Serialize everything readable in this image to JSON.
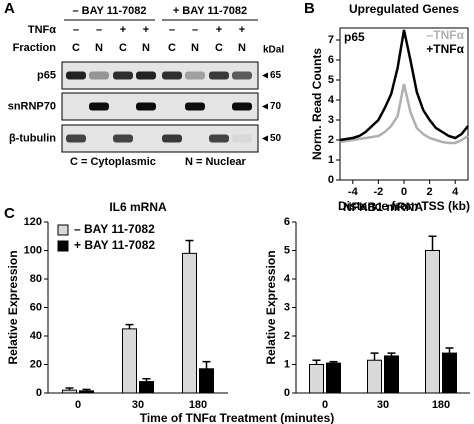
{
  "panel_labels": [
    "A",
    "B",
    "C"
  ],
  "blot": {
    "groups": [
      "– BAY 11-7082",
      "+ BAY 11-7082"
    ],
    "treatment_label": "TNFα",
    "treatment": [
      "–",
      "–",
      "+",
      "+",
      "–",
      "–",
      "+",
      "+"
    ],
    "fraction_label": "Fraction",
    "fractions": [
      "C",
      "N",
      "C",
      "N",
      "C",
      "N",
      "C",
      "N"
    ],
    "unit": "kDal",
    "rows": [
      {
        "name": "p65",
        "marker": "65"
      },
      {
        "name": "snRNP70",
        "marker": "70"
      },
      {
        "name": "β-tubulin",
        "marker": "50"
      }
    ],
    "legend": [
      "C = Cytoplasmic",
      "N = Nuclear"
    ]
  },
  "chart_data": [
    {
      "type": "line",
      "title": "Upregulated Genes",
      "annotation": "p65",
      "x_label": "Distance from TSS (kb)",
      "y_label": "Norm. Read Counts",
      "x": [
        -5,
        -4.5,
        -4,
        -3.5,
        -3,
        -2.5,
        -2,
        -1.5,
        -1,
        -0.5,
        0,
        0.5,
        1,
        1.5,
        2,
        2.5,
        3,
        3.5,
        4,
        4.5,
        5
      ],
      "series": [
        {
          "name": "–TNFα",
          "color": "#b0b0b0",
          "values": [
            1.9,
            1.95,
            2.0,
            2.05,
            2.1,
            2.15,
            2.2,
            2.4,
            2.7,
            3.2,
            4.8,
            3.4,
            2.6,
            2.3,
            2.1,
            2.0,
            1.9,
            1.85,
            1.85,
            2.0,
            2.2
          ]
        },
        {
          "name": "+TNFα",
          "color": "#000000",
          "values": [
            2.0,
            2.05,
            2.1,
            2.2,
            2.4,
            2.7,
            3.0,
            3.6,
            4.3,
            5.6,
            7.5,
            6.0,
            4.4,
            3.5,
            3.0,
            2.6,
            2.4,
            2.2,
            2.1,
            2.3,
            2.7
          ]
        }
      ],
      "xlim": [
        -5,
        5
      ],
      "xticks": [
        -4,
        -2,
        0,
        2,
        4
      ],
      "ylim": [
        0,
        7.6
      ],
      "yticks": [
        0,
        1,
        2,
        3,
        4,
        5,
        6,
        7
      ],
      "legend": "upper right"
    },
    {
      "type": "bar",
      "title": "IL6 mRNA",
      "y_label": "Relative Expression",
      "x_label": "Time of TNFα Treatment (minutes)",
      "categories": [
        "0",
        "30",
        "180"
      ],
      "series": [
        {
          "name": "– BAY 11-7082",
          "color": "#d9d9d9",
          "values": [
            2,
            45,
            98
          ],
          "errors": [
            1.5,
            3,
            9
          ]
        },
        {
          "name": "+ BAY 11-7082",
          "color": "#000000",
          "values": [
            1.5,
            8,
            17
          ],
          "errors": [
            1,
            2,
            5
          ]
        }
      ],
      "ylim": [
        0,
        120
      ],
      "yticks": [
        0,
        20,
        40,
        60,
        80,
        100,
        120
      ],
      "legend": "upper left"
    },
    {
      "type": "bar",
      "title": "NFKB1 mRNA",
      "y_label": "Relative Expression",
      "categories": [
        "0",
        "30",
        "180"
      ],
      "series": [
        {
          "color": "#d9d9d9",
          "values": [
            1,
            1.15,
            5
          ],
          "errors": [
            0.15,
            0.25,
            0.5
          ]
        },
        {
          "color": "#000000",
          "values": [
            1.05,
            1.3,
            1.4
          ],
          "errors": [
            0.05,
            0.1,
            0.18
          ]
        }
      ],
      "ylim": [
        0,
        6
      ],
      "yticks": [
        0,
        1,
        2,
        3,
        4,
        5,
        6
      ]
    }
  ]
}
